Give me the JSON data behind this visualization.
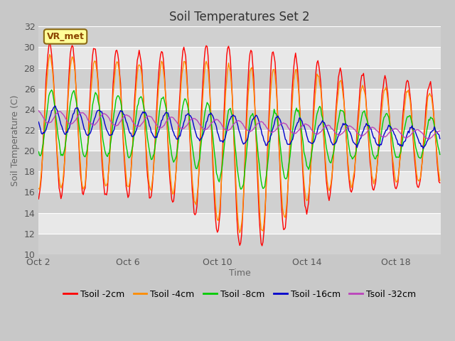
{
  "title": "Soil Temperatures Set 2",
  "xlabel": "Time",
  "ylabel": "Soil Temperature (C)",
  "ylim": [
    10,
    32
  ],
  "yticks": [
    10,
    12,
    14,
    16,
    18,
    20,
    22,
    24,
    26,
    28,
    30,
    32
  ],
  "xtick_labels": [
    "Oct 2",
    "Oct 6",
    "Oct 10",
    "Oct 14",
    "Oct 18"
  ],
  "xtick_positions": [
    0,
    4,
    8,
    12,
    16
  ],
  "annotation_text": "VR_met",
  "annotation_color": "#8B4500",
  "annotation_bg": "#FFFF99",
  "annotation_border": "#8B6914",
  "fig_bg": "#C8C8C8",
  "plot_bg_light": "#E8E8E8",
  "plot_bg_dark": "#D8D8D8",
  "grid_color": "#FFFFFF",
  "series": [
    {
      "label": "Tsoil -2cm",
      "color": "#FF0000"
    },
    {
      "label": "Tsoil -4cm",
      "color": "#FF8C00"
    },
    {
      "label": "Tsoil -8cm",
      "color": "#00CC00"
    },
    {
      "label": "Tsoil -16cm",
      "color": "#0000CC"
    },
    {
      "label": "Tsoil -32cm",
      "color": "#BB44BB"
    }
  ],
  "title_fontsize": 12,
  "axis_label_fontsize": 9,
  "tick_fontsize": 9,
  "legend_fontsize": 9
}
